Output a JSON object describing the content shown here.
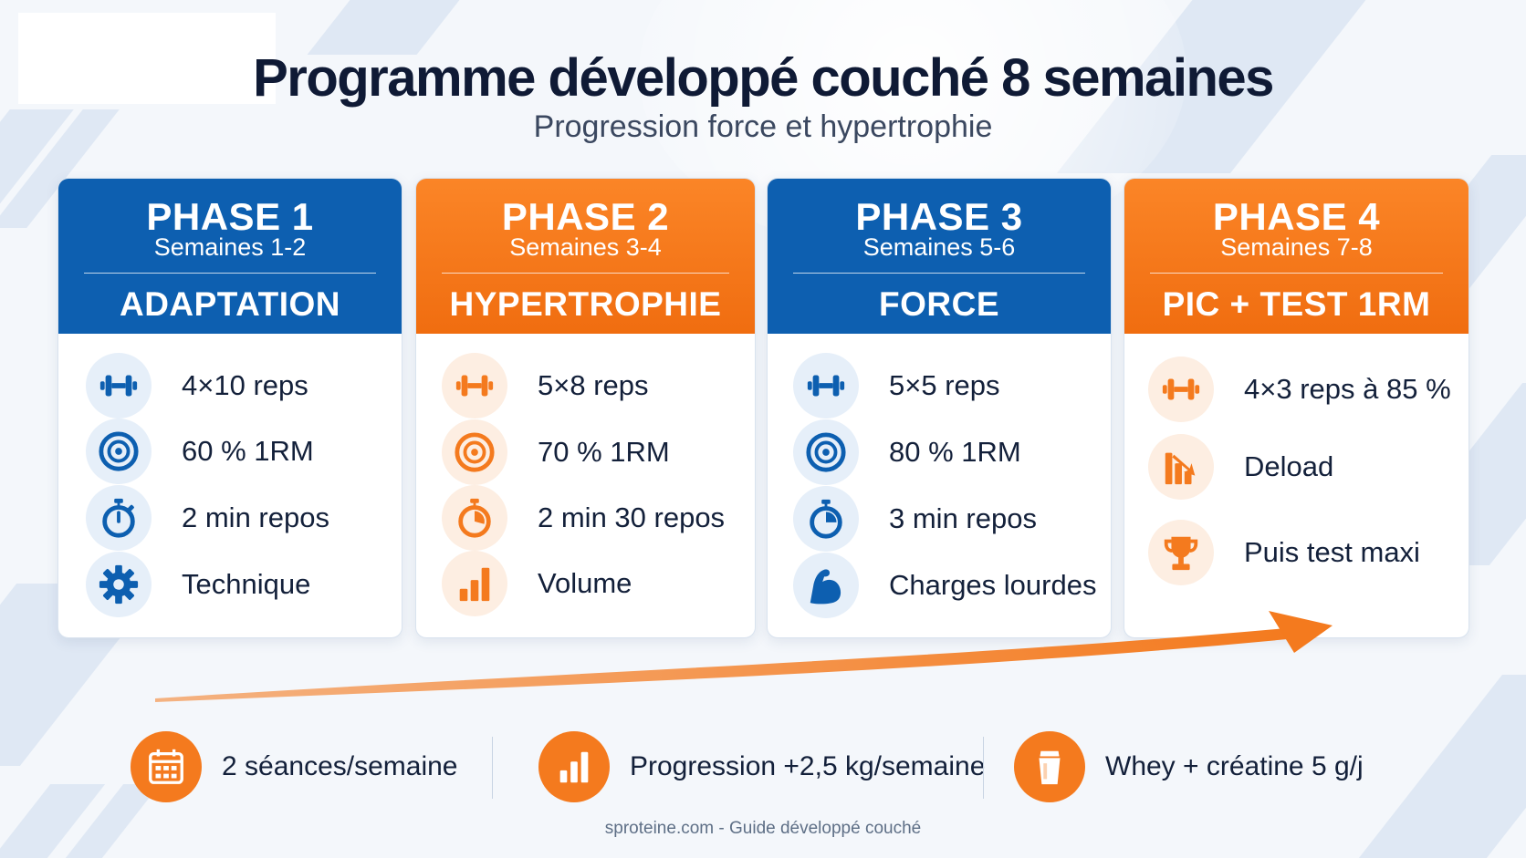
{
  "title": "Programme développé couché 8 semaines",
  "subtitle": "Progression force et hypertrophie",
  "colors": {
    "blue": "#0d5fb0",
    "orange": "#f47a1e",
    "dark_text": "#13203a"
  },
  "phases": [
    {
      "phase": "PHASE 1",
      "weeks": "Semaines 1-2",
      "goal": "ADAPTATION",
      "color": "blue",
      "items": [
        {
          "icon": "dumbbell-icon",
          "text": "4×10 reps"
        },
        {
          "icon": "target-icon",
          "text": "60 % 1RM"
        },
        {
          "icon": "stopwatch-icon",
          "text": "2 min repos"
        },
        {
          "icon": "gear-icon",
          "text": "Technique"
        }
      ]
    },
    {
      "phase": "PHASE 2",
      "weeks": "Semaines 3-4",
      "goal": "HYPERTROPHIE",
      "color": "orange",
      "items": [
        {
          "icon": "dumbbell-icon",
          "text": "5×8 reps"
        },
        {
          "icon": "target-icon",
          "text": "70 % 1RM"
        },
        {
          "icon": "stopwatch-icon",
          "text": "2 min 30 repos"
        },
        {
          "icon": "bar-chart-icon",
          "text": "Volume"
        }
      ]
    },
    {
      "phase": "PHASE 3",
      "weeks": "Semaines 5-6",
      "goal": "FORCE",
      "color": "blue",
      "items": [
        {
          "icon": "dumbbell-icon",
          "text": "5×5 reps"
        },
        {
          "icon": "target-icon",
          "text": "80 % 1RM"
        },
        {
          "icon": "stopwatch-icon",
          "text": "3 min repos"
        },
        {
          "icon": "biceps-icon",
          "text": "Charges lourdes"
        }
      ]
    },
    {
      "phase": "PHASE 4",
      "weeks": "Semaines 7-8",
      "goal": "PIC + TEST 1RM",
      "color": "orange",
      "items": [
        {
          "icon": "dumbbell-icon",
          "text": "4×3 reps à 85 %"
        },
        {
          "icon": "deload-chart-icon",
          "text": "Deload"
        },
        {
          "icon": "trophy-icon",
          "text": "Puis test maxi"
        }
      ]
    }
  ],
  "bottom": [
    {
      "icon": "calendar-icon",
      "text": "2 séances/semaine"
    },
    {
      "icon": "bar-chart-icon",
      "text": "Progression +2,5 kg/semaine"
    },
    {
      "icon": "shaker-icon",
      "text": "Whey + créatine 5 g/j"
    }
  ],
  "footer": "sproteine.com - Guide développé couché"
}
